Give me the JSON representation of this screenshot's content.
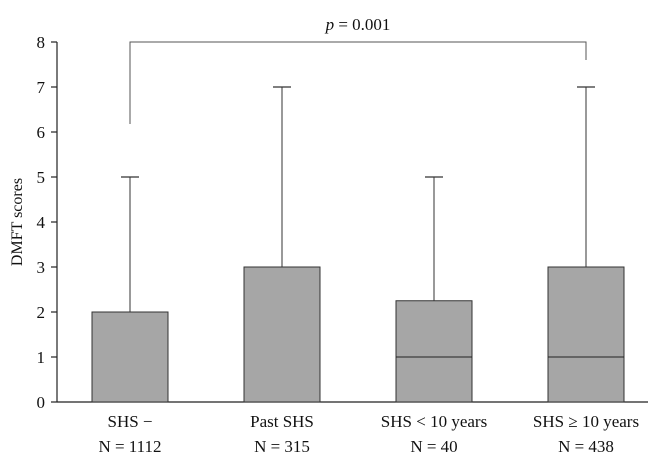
{
  "chart_data": {
    "type": "box",
    "ylabel": "DMFT scores",
    "ylim": [
      0,
      8
    ],
    "yticks": [
      0,
      1,
      2,
      3,
      4,
      5,
      6,
      7,
      8
    ],
    "categories": [
      {
        "name": "SHS −",
        "n_label": "N = 1112",
        "min": 0,
        "q1": 0,
        "median": 0,
        "q3": 2,
        "max": 5
      },
      {
        "name": "Past SHS",
        "n_label": "N = 315",
        "min": 0,
        "q1": 0,
        "median": 0,
        "q3": 3,
        "max": 7
      },
      {
        "name": "SHS < 10 years",
        "n_label": "N = 40",
        "min": 0,
        "q1": 0,
        "median": 1,
        "q3": 2.25,
        "max": 5
      },
      {
        "name": "SHS ≥ 10 years",
        "n_label": "N = 438",
        "min": 0,
        "q1": 0,
        "median": 1,
        "q3": 3,
        "max": 7
      }
    ],
    "box_color": "#a6a6a6",
    "annotation": {
      "p_symbol": "p",
      "p_rest": " = 0.001",
      "from_category": 0,
      "to_category": 3
    }
  }
}
